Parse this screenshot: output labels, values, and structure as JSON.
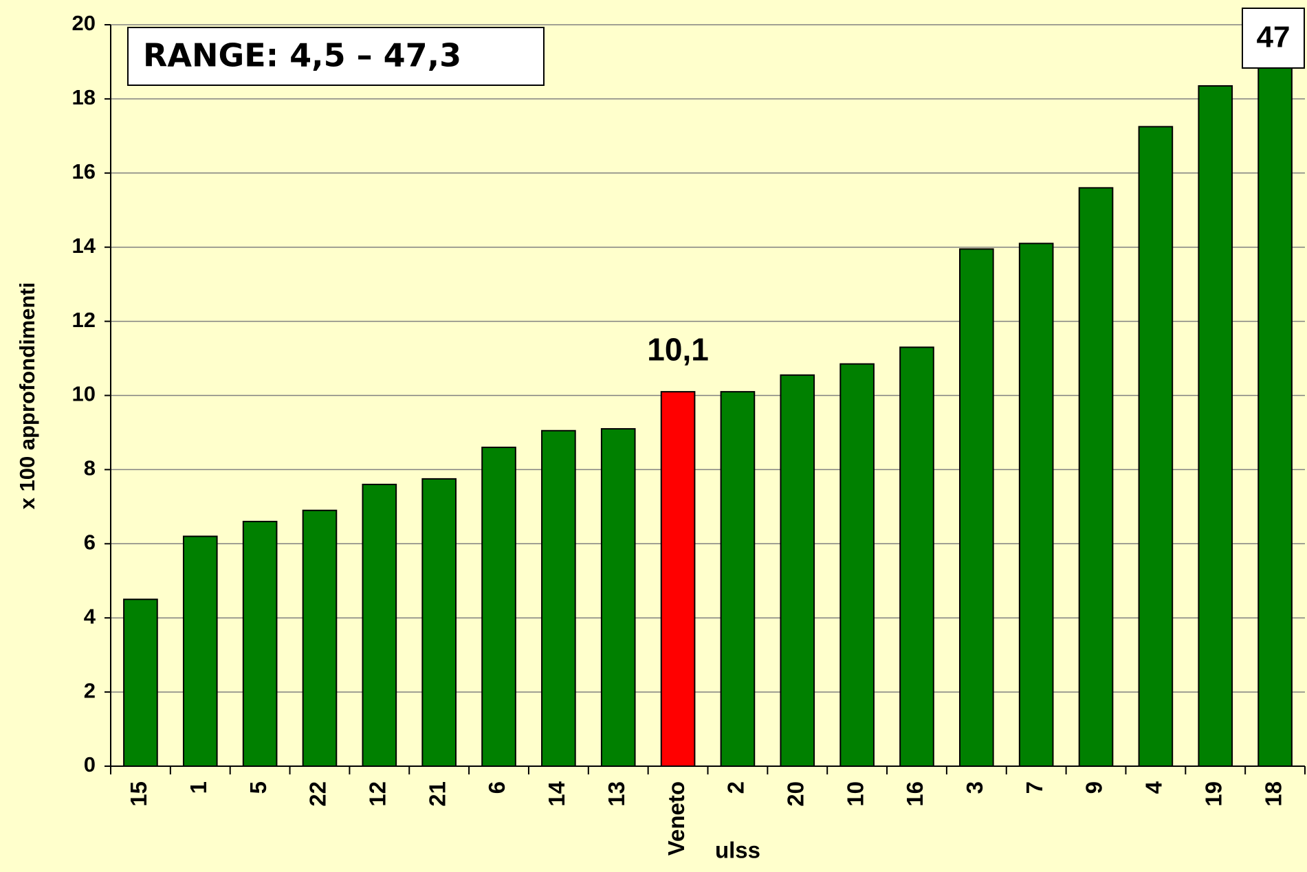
{
  "chart_data": {
    "type": "bar",
    "annotation": "RANGE: 4,5 – 47,3",
    "categories": [
      "15",
      "1",
      "5",
      "22",
      "12",
      "21",
      "6",
      "14",
      "13",
      "Veneto",
      "2",
      "20",
      "10",
      "16",
      "3",
      "7",
      "9",
      "4",
      "19",
      "18"
    ],
    "values": [
      4.5,
      6.2,
      6.6,
      6.9,
      7.6,
      7.75,
      8.6,
      9.05,
      9.1,
      10.1,
      10.1,
      10.55,
      10.85,
      11.3,
      13.95,
      14.1,
      15.6,
      17.25,
      18.35,
      47.3
    ],
    "value_labels": [
      null,
      null,
      null,
      null,
      null,
      null,
      null,
      null,
      null,
      "10,1",
      null,
      null,
      null,
      null,
      null,
      null,
      null,
      null,
      null,
      "47"
    ],
    "colors": [
      "#008000",
      "#008000",
      "#008000",
      "#008000",
      "#008000",
      "#008000",
      "#008000",
      "#008000",
      "#008000",
      "#ff0000",
      "#008000",
      "#008000",
      "#008000",
      "#008000",
      "#008000",
      "#008000",
      "#008000",
      "#008000",
      "#008000",
      "#008000"
    ],
    "xlabel": "ulss",
    "ylabel": "x 100 approfondimenti",
    "ylim": [
      0,
      20
    ],
    "yticks": [
      0,
      2,
      4,
      6,
      8,
      10,
      12,
      14,
      16,
      18,
      20
    ],
    "grid": true
  }
}
